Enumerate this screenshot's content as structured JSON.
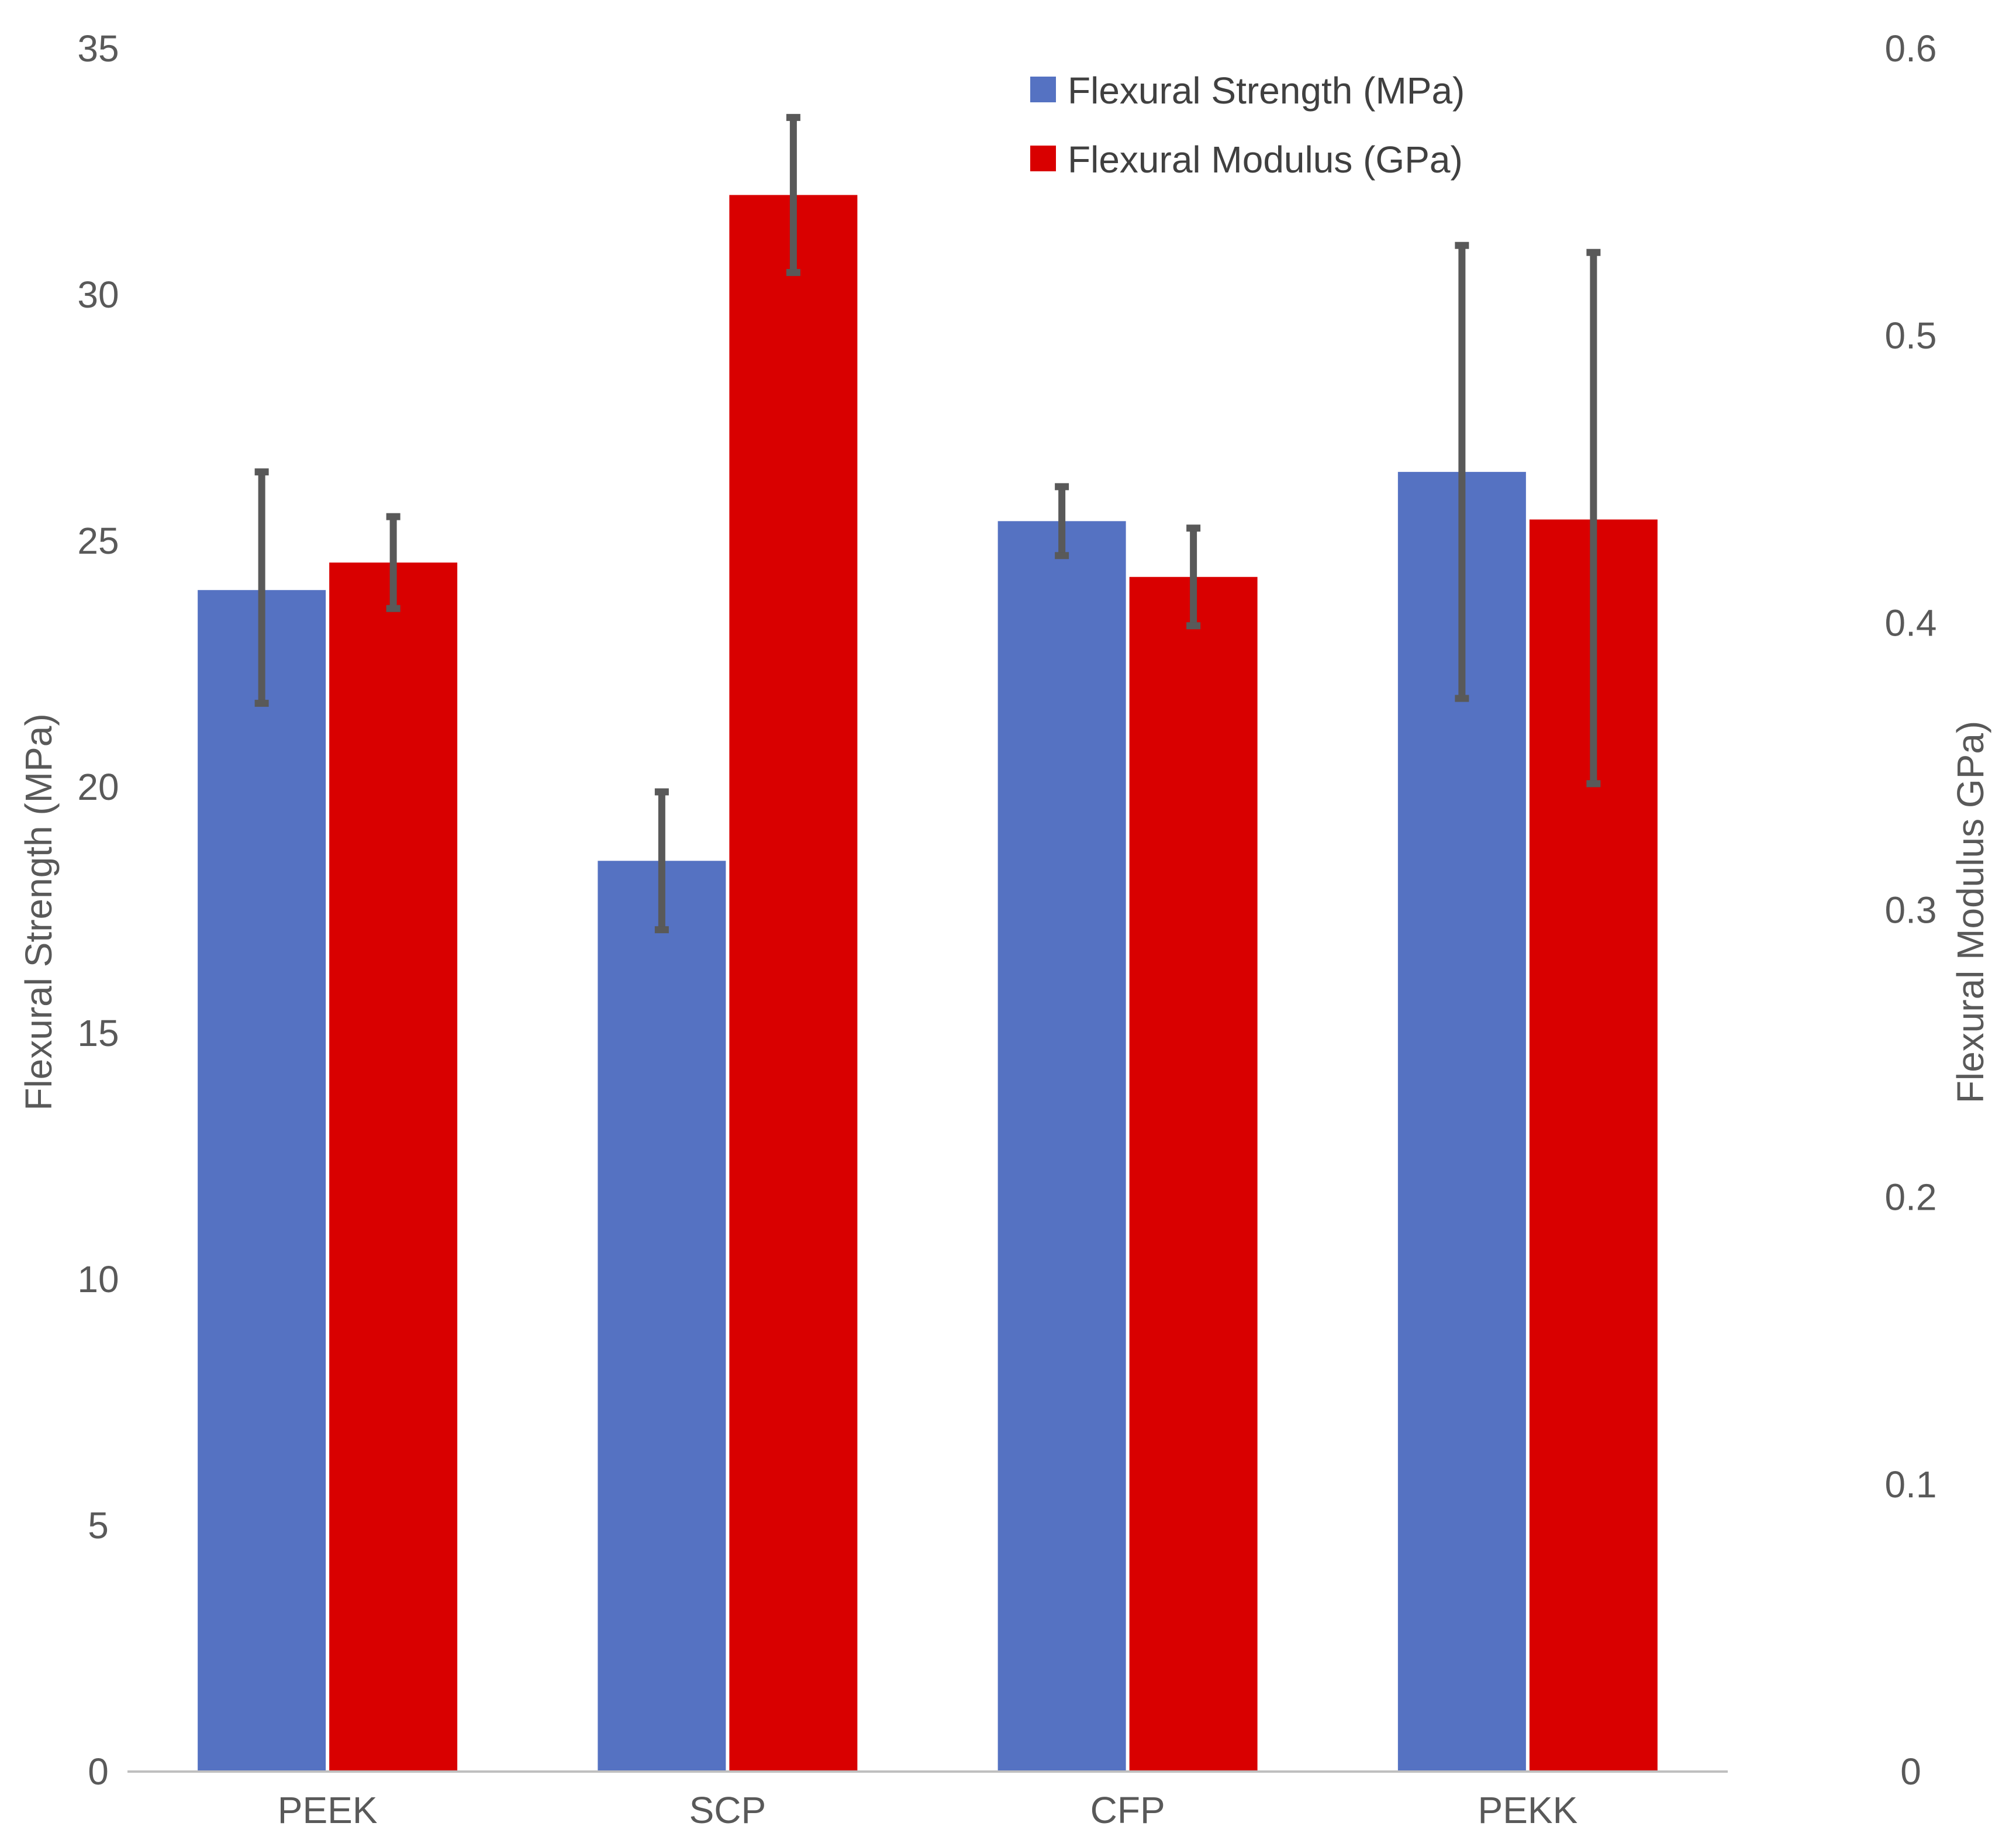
{
  "chart_data": {
    "type": "bar",
    "categories": [
      "PEEK",
      "SCP",
      "CFP",
      "PEKK"
    ],
    "series": [
      {
        "name": "Flexural Strength (MPa)",
        "axis": "left",
        "color": "#5572C2",
        "values": [
          24.0,
          18.5,
          25.4,
          26.4
        ],
        "error_low": [
          21.7,
          17.1,
          24.7,
          21.8
        ],
        "error_high": [
          26.4,
          19.9,
          26.1,
          31.0
        ]
      },
      {
        "name": "Flexural Modulus (GPa)",
        "axis": "right",
        "color": "#D90000",
        "values": [
          0.421,
          0.549,
          0.416,
          0.436
        ],
        "error_low": [
          0.405,
          0.522,
          0.399,
          0.344
        ],
        "error_high": [
          0.437,
          0.576,
          0.433,
          0.529
        ]
      }
    ],
    "ylabel": "Flexural Strength (MPa)",
    "ylabel_right": "Flexural Modulus GPa)",
    "ylim": [
      0,
      35
    ],
    "ylim_right": [
      0,
      0.6
    ],
    "yticks": [
      "0",
      "5",
      "10",
      "15",
      "20",
      "25",
      "30",
      "35"
    ],
    "yticks_right": [
      "0",
      "0.1",
      "0.2",
      "0.3",
      "0.4",
      "0.5",
      "0.6"
    ],
    "legend_position": "top-center",
    "grid": false,
    "colors": {
      "error_bar": "#595959",
      "axis_line": "#BFBFBF",
      "text": "#595959"
    }
  }
}
